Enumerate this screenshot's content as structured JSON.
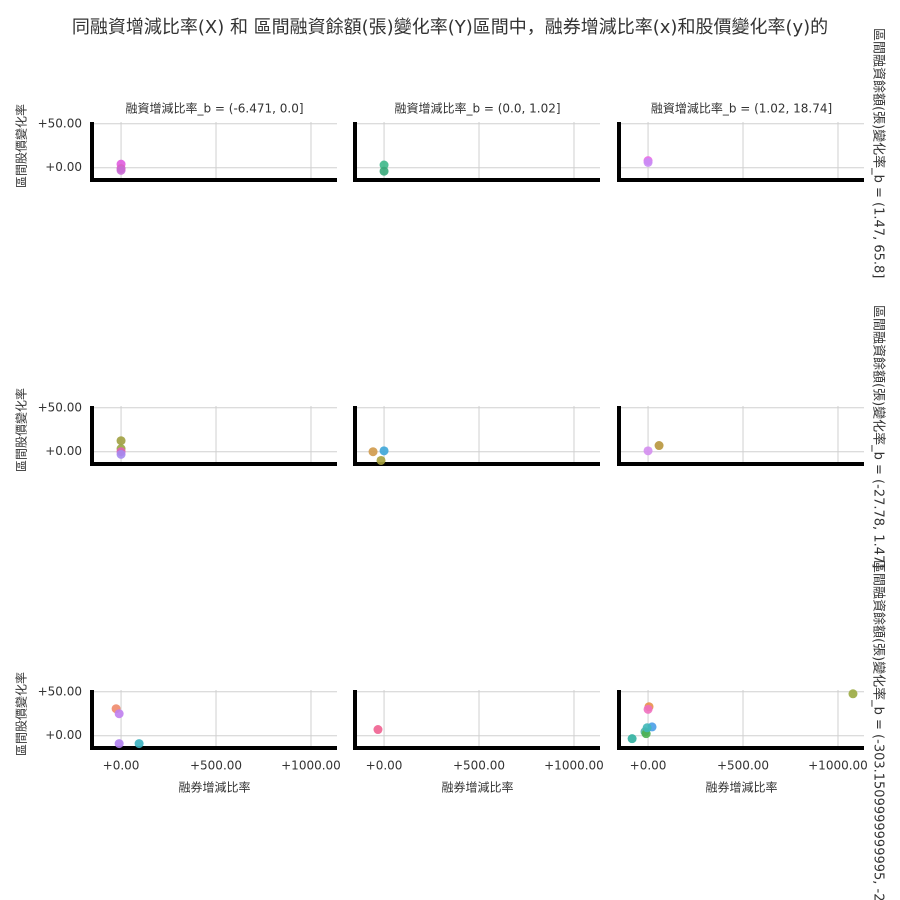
{
  "title": "同融資增減比率(X) 和 區間融資餘額(張)變化率(Y)區間中，融券增減比率(x)和股價變化率(y)的",
  "row_titles": [
    "區間融資餘額(張)變化率_b = (1.47, 65.8]",
    "區間融資餘額(張)變化率_b = (-27.78, 1.47]",
    "區間融資餘額(張)變化率_b = (-303.1509999999995, -27.7"
  ],
  "x_label": "融券增減比率",
  "y_label": "區間股價變化率",
  "xlim": [
    -153,
    1137
  ],
  "ylim": [
    -14,
    52
  ],
  "xticks": [
    {
      "value": 0,
      "label": "+0.00"
    },
    {
      "value": 500,
      "label": "+500.00"
    },
    {
      "value": 1000,
      "label": "+1000.00"
    }
  ],
  "yticks": [
    {
      "value": 0,
      "label": "+0.00"
    },
    {
      "value": 50,
      "label": "+50.00"
    }
  ],
  "chart_data": [
    {
      "type": "scatter",
      "title": "融資增減比率_b = (-6.471, 0.0]",
      "x": [
        0,
        0,
        0
      ],
      "values": [
        4,
        -1,
        -3
      ],
      "colors": [
        "#e05ce0",
        "#d763c4",
        "#c86bd4"
      ]
    },
    {
      "type": "scatter",
      "title": "融資增減比率_b = (0.0, 1.02]",
      "x": [
        0,
        0
      ],
      "values": [
        3,
        -4
      ],
      "colors": [
        "#3db88a",
        "#39a87a"
      ]
    },
    {
      "type": "scatter",
      "title": "融資增減比率_b = (1.02, 18.74]",
      "x": [
        0,
        0
      ],
      "values": [
        8,
        6
      ],
      "colors": [
        "#e86de6",
        "#c98cf5"
      ]
    },
    {
      "type": "scatter",
      "x": [
        0,
        0,
        0,
        0
      ],
      "values": [
        12.5,
        3.4,
        0,
        -3
      ],
      "colors": [
        "#a0a040",
        "#9aa543",
        "#e060b8",
        "#a48af0"
      ]
    },
    {
      "type": "scatter",
      "x": [
        -58,
        0,
        -16
      ],
      "values": [
        0,
        1,
        -10
      ],
      "colors": [
        "#d09a4a",
        "#3ea6d8",
        "#a7a23c"
      ]
    },
    {
      "type": "scatter",
      "x": [
        0,
        58
      ],
      "values": [
        1,
        7
      ],
      "colors": [
        "#d48ef0",
        "#b8963c"
      ]
    },
    {
      "type": "scatter",
      "x": [
        -26,
        -10,
        -10,
        95
      ],
      "values": [
        30.7,
        25,
        -9,
        -9
      ],
      "colors": [
        "#f08a6a",
        "#c080f0",
        "#b080f0",
        "#3ab0c0"
      ]
    },
    {
      "type": "scatter",
      "x": [
        -32
      ],
      "values": [
        7
      ],
      "colors": [
        "#f06090"
      ]
    },
    {
      "type": "scatter",
      "x": [
        5,
        0,
        -16,
        -10,
        21,
        -5,
        -84,
        1079
      ],
      "values": [
        33,
        30,
        4.5,
        2.3,
        10,
        9,
        -3.4,
        47.7
      ],
      "colors": [
        "#e8904a",
        "#f070c0",
        "#50b0a0",
        "#4cb050",
        "#4a9ee8",
        "#40b8b8",
        "#30b0a0",
        "#9aaa40"
      ]
    }
  ]
}
